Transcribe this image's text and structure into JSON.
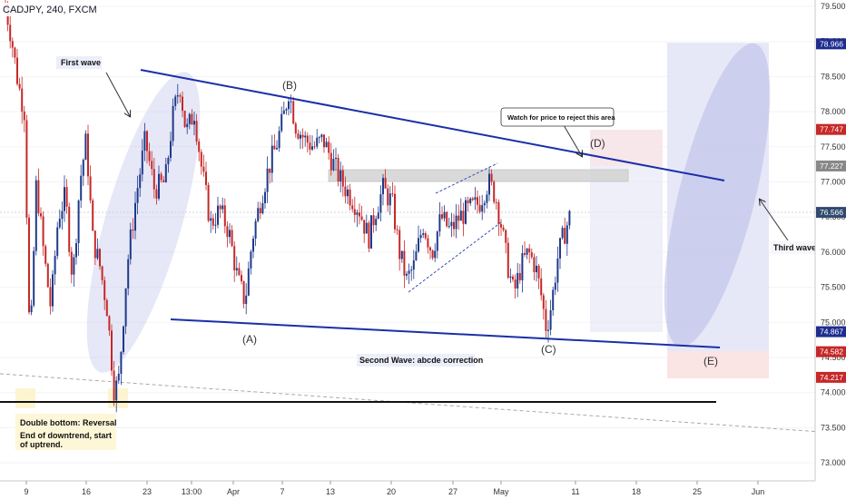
{
  "title": "CADJPY, 240, FXCM",
  "chart_data": {
    "type": "candlestick",
    "title": "CADJPY, 240, FXCM",
    "ylim": [
      72.8,
      79.6
    ],
    "y_ticks": [
      "79.500",
      "79.000",
      "78.500",
      "78.000",
      "77.500",
      "77.000",
      "76.500",
      "76.000",
      "75.500",
      "75.000",
      "74.500",
      "74.000",
      "73.500",
      "73.000"
    ],
    "x_ticks": [
      "9",
      "16",
      "23",
      "13:00",
      "Apr",
      "7",
      "13",
      "20",
      "27",
      "May",
      "11",
      "18",
      "25",
      "Jun"
    ],
    "price_badges": [
      {
        "value": "78.966",
        "color": "#1e2d8f"
      },
      {
        "value": "77.747",
        "color": "#c62828"
      },
      {
        "value": "77.227",
        "color": "#888888"
      },
      {
        "value": "76.566",
        "color": "#2f4a6e"
      },
      {
        "value": "74.867",
        "color": "#1e2d8f"
      },
      {
        "value": "74.582",
        "color": "#c62828"
      },
      {
        "value": "74.217",
        "color": "#c62828"
      }
    ],
    "annotations": {
      "first_wave": "First wave",
      "third_wave": "Third wave",
      "second_wave": "Second Wave: abcde correction",
      "double_bottom": "Double bottom: Reversal",
      "end_downtrend": "End of downtrend, start of uptrend.",
      "watch": "Watch for price to reject this area"
    },
    "wave_labels": [
      "(A)",
      "(B)",
      "(C)",
      "(D)",
      "(E)"
    ],
    "colors": {
      "up": "#1e3a8a",
      "down": "#c62828",
      "trend": "#1a2fa8",
      "ellipse": "#c5c6ee"
    }
  }
}
